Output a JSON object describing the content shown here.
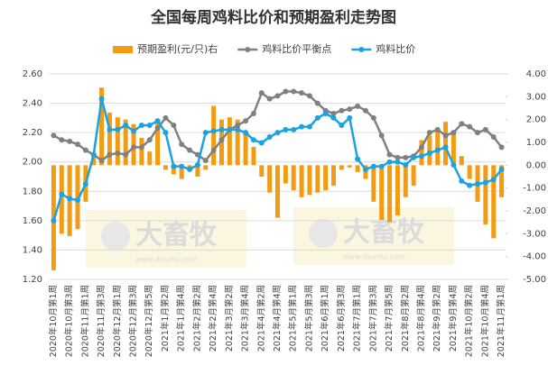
{
  "chart_data": {
    "type": "bar-line-combo",
    "title": "全国每周鸡料比价和预期盈利走势图",
    "watermark": {
      "text": "大畜牧",
      "url": "www.dxumu.com"
    },
    "categories": [
      "2020年10月第1周",
      null,
      "2020年10月第3周",
      null,
      "2020年11月第1周",
      null,
      "2020年11月第3周",
      null,
      "2020年12月第1周",
      null,
      "2020年12月第3周",
      null,
      "2020年12月第5周",
      null,
      "2021年1月第2周",
      null,
      "2021年1月第4周",
      null,
      "2021年2月第2周",
      null,
      "2021年2月第4周",
      null,
      "2021年3月第2周",
      null,
      "2021年3月第4周",
      null,
      "2021年4月第2周",
      null,
      "2021年4月第4周",
      null,
      "2021年5月第1周",
      null,
      "2021年5月第3周",
      null,
      "2021年6月第1周",
      null,
      "2021年6月第3周",
      null,
      "2021年7月第1周",
      null,
      "2021年7月第3周",
      null,
      "2021年7月第5周",
      null,
      "2021年8月第2周",
      null,
      "2021年8月第4周",
      null,
      "2021年9月第2周",
      null,
      "2021年9月第4周",
      null,
      "2021年10月第2周",
      null,
      "2021年10月第4周",
      null,
      "2021年11月第1周"
    ],
    "series": [
      {
        "name": "预期盈利(元/只)右",
        "type": "bar",
        "axis": "y2",
        "color": "#f39c12",
        "values": [
          -4.6,
          -3.0,
          -3.1,
          -2.8,
          -1.6,
          0.5,
          3.4,
          2.3,
          2.1,
          2.0,
          1.8,
          1.2,
          0.6,
          2.0,
          -0.2,
          -0.4,
          -0.6,
          -0.1,
          -0.5,
          -0.2,
          2.6,
          2.0,
          2.1,
          2.0,
          1.5,
          0.8,
          -0.5,
          -1.2,
          -2.3,
          -0.8,
          -1.1,
          -1.4,
          -1.3,
          -1.2,
          -1.1,
          -0.9,
          -0.2,
          -0.1,
          -0.3,
          -0.6,
          -1.6,
          -2.4,
          -2.5,
          -2.2,
          -1.4,
          -0.9,
          1.1,
          1.3,
          1.6,
          1.9,
          1.5,
          0.4,
          -0.6,
          -1.6,
          -2.6,
          -3.2,
          -1.4
        ]
      },
      {
        "name": "鸡料比价平衡点",
        "type": "line",
        "color": "#808080",
        "values": [
          2.18,
          2.15,
          2.14,
          2.12,
          2.08,
          2.05,
          2.01,
          2.05,
          2.06,
          2.05,
          2.1,
          2.1,
          2.15,
          2.23,
          2.3,
          2.25,
          2.12,
          2.08,
          2.05,
          2.01,
          2.08,
          2.15,
          2.22,
          2.25,
          2.28,
          2.33,
          2.47,
          2.43,
          2.45,
          2.48,
          2.48,
          2.47,
          2.45,
          2.4,
          2.35,
          2.33,
          2.35,
          2.36,
          2.38,
          2.35,
          2.3,
          2.18,
          2.05,
          2.03,
          2.03,
          2.04,
          2.1,
          2.2,
          2.22,
          2.18,
          2.2,
          2.26,
          2.24,
          2.2,
          2.22,
          2.17,
          2.1
        ]
      },
      {
        "name": "鸡料比价",
        "type": "line",
        "color": "#1aa3e0",
        "values": [
          1.6,
          1.78,
          1.75,
          1.74,
          1.85,
          2.05,
          2.43,
          2.22,
          2.22,
          2.25,
          2.21,
          2.25,
          2.25,
          2.28,
          2.2,
          1.97,
          1.97,
          1.95,
          1.98,
          2.2,
          2.21,
          2.22,
          2.22,
          2.22,
          2.2,
          2.15,
          2.13,
          2.17,
          2.2,
          2.22,
          2.22,
          2.24,
          2.24,
          2.3,
          2.33,
          2.3,
          2.25,
          2.3,
          2.02,
          1.95,
          1.97,
          1.97,
          2.0,
          2.0,
          1.98,
          2.03,
          2.04,
          2.06,
          2.08,
          2.1,
          1.98,
          1.87,
          1.84,
          1.85,
          1.86,
          1.88,
          1.95
        ]
      }
    ],
    "ylim": [
      1.2,
      2.6
    ],
    "yticks": [
      {
        "value": 1.2,
        "label": "1.20"
      },
      {
        "value": 1.4,
        "label": "1.40"
      },
      {
        "value": 1.6,
        "label": "1.60"
      },
      {
        "value": 1.8,
        "label": "1.80"
      },
      {
        "value": 2.0,
        "label": "2.00"
      },
      {
        "value": 2.2,
        "label": "2.20"
      },
      {
        "value": 2.4,
        "label": "2.40"
      },
      {
        "value": 2.6,
        "label": "2.60"
      }
    ],
    "y2lim": [
      -5,
      4
    ],
    "y2ticks": [
      {
        "value": -5,
        "label": "-5.00"
      },
      {
        "value": -4,
        "label": "-4.00"
      },
      {
        "value": -3,
        "label": "-3.00"
      },
      {
        "value": -2,
        "label": "-2.00"
      },
      {
        "value": -1,
        "label": "-1.00"
      },
      {
        "value": 0,
        "label": "0.00"
      },
      {
        "value": 1,
        "label": "1.00"
      },
      {
        "value": 2,
        "label": "2.00"
      },
      {
        "value": 3,
        "label": "3.00"
      },
      {
        "value": 4,
        "label": "4.00"
      }
    ],
    "grid": true,
    "legend": "top"
  }
}
